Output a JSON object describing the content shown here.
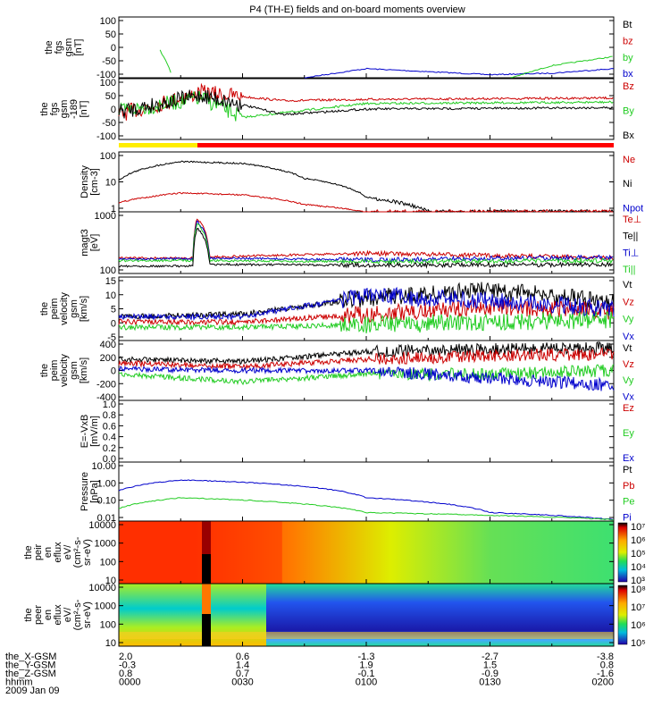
{
  "title": "P4 (TH-E) fields and on-board moments overview",
  "date": "2009 Jan 09",
  "colors": {
    "black": "#000000",
    "red": "#cc0000",
    "green": "#22cc22",
    "blue": "#0000cc",
    "yellow": "#ffee00",
    "barred": "#ff0000"
  },
  "panels": [
    {
      "id": "fgs",
      "ylabel": [
        "the",
        "fgs",
        "gsm",
        "[nT]"
      ],
      "ticks": [
        "100",
        "50",
        "0",
        "-50",
        "-100"
      ],
      "legend": [
        {
          "t": "Bt",
          "c": "black"
        },
        {
          "t": "bz",
          "c": "red"
        },
        {
          "t": "by",
          "c": "green"
        },
        {
          "t": "bx",
          "c": "blue"
        }
      ]
    },
    {
      "id": "fgs2",
      "ylabel": [
        "the",
        "fgs",
        "gsm",
        "-189",
        "[nT]"
      ],
      "ticks": [
        "100",
        "50",
        "0",
        "-50",
        "-100"
      ],
      "legend": [
        {
          "t": "Bz",
          "c": "red"
        },
        {
          "t": "By",
          "c": "green"
        },
        {
          "t": "Bx",
          "c": "black"
        }
      ]
    },
    {
      "id": "density",
      "ylabel": [
        "Density",
        "[cm-3]"
      ],
      "ticks": [
        "100",
        "10",
        "1"
      ],
      "legend": [
        {
          "t": "Ne",
          "c": "red"
        },
        {
          "t": "Ni",
          "c": "black"
        },
        {
          "t": "Npot",
          "c": "blue"
        }
      ]
    },
    {
      "id": "temp",
      "ylabel": [
        "magt3",
        "[eV]"
      ],
      "ticks": [
        "1000",
        "100"
      ],
      "legend": [
        {
          "t": "Te⊥",
          "c": "red"
        },
        {
          "t": "Te||",
          "c": "black"
        },
        {
          "t": "Ti⊥",
          "c": "blue"
        },
        {
          "t": "Ti||",
          "c": "green"
        }
      ]
    },
    {
      "id": "vel1",
      "ylabel": [
        "the",
        "peim",
        "velocity",
        "gsm",
        "[km/s]"
      ],
      "ticks": [
        "15",
        "10",
        "5",
        "0",
        "-5"
      ],
      "legend": [
        {
          "t": "Vt",
          "c": "black"
        },
        {
          "t": "Vz",
          "c": "red"
        },
        {
          "t": "Vy",
          "c": "green"
        },
        {
          "t": "Vx",
          "c": "blue"
        }
      ]
    },
    {
      "id": "vel2",
      "ylabel": [
        "the",
        "peim",
        "velocity",
        "gsm",
        "[km/s]"
      ],
      "ticks": [
        "400",
        "200",
        "0",
        "-200",
        "-400"
      ],
      "legend": [
        {
          "t": "Vt",
          "c": "black"
        },
        {
          "t": "Vz",
          "c": "red"
        },
        {
          "t": "Vy",
          "c": "green"
        },
        {
          "t": "Vx",
          "c": "blue"
        }
      ]
    },
    {
      "id": "efield",
      "ylabel": [
        "E=-VxB",
        "[mV/m]"
      ],
      "ticks": [
        "1.0",
        "0.8",
        "0.6",
        "0.4",
        "0.2",
        "0.0"
      ],
      "legend": [
        {
          "t": "Ez",
          "c": "red"
        },
        {
          "t": "Ey",
          "c": "green"
        },
        {
          "t": "Ex",
          "c": "blue"
        }
      ]
    },
    {
      "id": "pressure",
      "ylabel": [
        "Pressure",
        "[nPa]"
      ],
      "ticks": [
        "10.00",
        "1.00",
        "0.10",
        "0.01"
      ],
      "legend": [
        {
          "t": "Pt",
          "c": "black"
        },
        {
          "t": "Pb",
          "c": "red"
        },
        {
          "t": "Pe",
          "c": "green"
        },
        {
          "t": "Pi",
          "c": "blue"
        }
      ]
    },
    {
      "id": "ion_spec",
      "ylabel": [
        "the",
        "peir",
        "en",
        "eflux",
        "eV/",
        "(cm²-s-",
        "sr-eV)"
      ],
      "ticks": [
        "10000",
        "1000",
        "100",
        "10"
      ],
      "colorbar": [
        "10⁷",
        "10⁶",
        "10⁵",
        "10⁴",
        "10³"
      ]
    },
    {
      "id": "ele_spec",
      "ylabel": [
        "the",
        "peer",
        "en",
        "eflux",
        "eV/",
        "(cm²-s-",
        "sr-eV)"
      ],
      "ticks": [
        "10000",
        "1000",
        "100",
        "10"
      ],
      "colorbar": [
        "10⁸",
        "10⁷",
        "10⁶",
        "10⁵"
      ]
    }
  ],
  "footer": {
    "rows": [
      {
        "label": "the_X-GSM",
        "values": [
          "2.0",
          "0.6",
          "-1.3",
          "-2.7",
          "-3.8"
        ]
      },
      {
        "label": "the_Y-GSM",
        "values": [
          "-0.3",
          "1.4",
          "1.9",
          "1.5",
          "0.8"
        ]
      },
      {
        "label": "the_Z-GSM",
        "values": [
          "0.8",
          "0.7",
          "-0.1",
          "-0.9",
          "-1.6"
        ]
      },
      {
        "label": "hhmm",
        "values": [
          "0000",
          "0030",
          "0100",
          "0130",
          "0200"
        ]
      }
    ]
  },
  "chart_data": {
    "type": "line",
    "title": "P4 (TH-E) fields and on-board moments overview",
    "x_axis": {
      "label": "hhmm",
      "ticks": [
        "0000",
        "0030",
        "0100",
        "0130",
        "0200"
      ],
      "range": [
        "0000",
        "0200"
      ]
    },
    "panels": [
      {
        "name": "the fgs gsm [nT]",
        "ylim": [
          -100,
          100
        ],
        "series": [
          {
            "name": "by",
            "x": [
              "0010",
              "0012",
              "0013"
            ],
            "y": [
              -10,
              -60,
              -100
            ]
          },
          {
            "name": "bx",
            "x": [
              "0045",
              "0055",
              "0100",
              "0115",
              "0130",
              "0145",
              "0200"
            ],
            "y": [
              -100,
              -80,
              -70,
              -80,
              -90,
              -85,
              -70
            ]
          },
          {
            "name": "by",
            "x": [
              "0135",
              "0145",
              "0200"
            ],
            "y": [
              -100,
              -60,
              -30
            ]
          }
        ]
      },
      {
        "name": "the fgs gsm -189 [nT]",
        "ylim": [
          -120,
          100
        ],
        "series": [
          {
            "name": "Bz",
            "x": [
              "0000",
              "0020",
              "0040",
              "0100",
              "0200"
            ],
            "y": [
              -30,
              50,
              20,
              25,
              30
            ]
          },
          {
            "name": "By",
            "x": [
              "0000",
              "0020",
              "0030",
              "0100",
              "0200"
            ],
            "y": [
              -20,
              30,
              -40,
              10,
              15
            ]
          },
          {
            "name": "Bx",
            "x": [
              "0000",
              "0020",
              "0040",
              "0100",
              "0200"
            ],
            "y": [
              -20,
              40,
              -30,
              -10,
              -5
            ]
          }
        ]
      },
      {
        "name": "Density [cm-3]",
        "scale": "log",
        "ylim": [
          0.5,
          150
        ],
        "series": [
          {
            "name": "Ni",
            "x": [
              "0000",
              "0015",
              "0030",
              "0045",
              "0100",
              "0115",
              "0200"
            ],
            "y": [
              10,
              60,
              50,
              12,
              2,
              0.5,
              0.45
            ]
          },
          {
            "name": "Ne",
            "x": [
              "0000",
              "0015",
              "0030",
              "0045",
              "0100",
              "0200"
            ],
            "y": [
              1.2,
              3,
              2.5,
              1,
              0.5,
              0.3
            ]
          }
        ]
      },
      {
        "name": "magt3 [eV]",
        "scale": "log",
        "ylim": [
          100,
          8000
        ],
        "series": [
          {
            "name": "Te⊥",
            "x": [
              "0000",
              "0018",
              "0019",
              "0022",
              "0100",
              "0200"
            ],
            "y": [
              300,
              300,
              5000,
              320,
              420,
              300
            ]
          },
          {
            "name": "Ti⊥",
            "x": [
              "0000",
              "0018",
              "0019",
              "0022",
              "0100",
              "0200"
            ],
            "y": [
              280,
              280,
              4000,
              300,
              260,
              320
            ]
          },
          {
            "name": "Ti||",
            "x": [
              "0000",
              "0018",
              "0019",
              "0022",
              "0100",
              "0200"
            ],
            "y": [
              250,
              250,
              3500,
              250,
              230,
              250
            ]
          },
          {
            "name": "Te||",
            "x": [
              "0000",
              "0018",
              "0019",
              "0022",
              "0100",
              "0200"
            ],
            "y": [
              170,
              170,
              2500,
              190,
              180,
              190
            ]
          }
        ]
      },
      {
        "name": "the peim velocity gsm [km/s]",
        "ylim": [
          -7,
          17
        ],
        "series": [
          {
            "name": "Vt",
            "x": [
              "0000",
              "0030",
              "0100",
              "0130",
              "0200"
            ],
            "y": [
              2,
              3,
              9,
              12,
              8
            ]
          },
          {
            "name": "Vz",
            "x": [
              "0000",
              "0030",
              "0100",
              "0130",
              "0200"
            ],
            "y": [
              0,
              0,
              3,
              6,
              4
            ]
          },
          {
            "name": "Vy",
            "x": [
              "0000",
              "0030",
              "0100",
              "0130",
              "0200"
            ],
            "y": [
              -2,
              -2,
              -1,
              0,
              1
            ]
          },
          {
            "name": "Vx",
            "x": [
              "0000",
              "0030",
              "0100",
              "0130",
              "0200"
            ],
            "y": [
              2,
              2,
              10,
              8,
              5
            ]
          }
        ]
      },
      {
        "name": "the peim velocity gsm [km/s]",
        "ylim": [
          -400,
          400
        ],
        "series": [
          {
            "name": "Vt",
            "x": [
              "0000",
              "0030",
              "0100",
              "0130",
              "0200"
            ],
            "y": [
              150,
              120,
              250,
              280,
              300
            ]
          },
          {
            "name": "Vz",
            "x": [
              "0000",
              "0030",
              "0100",
              "0130",
              "0200"
            ],
            "y": [
              100,
              50,
              150,
              200,
              220
            ]
          },
          {
            "name": "Vy",
            "x": [
              "0000",
              "0030",
              "0100",
              "0130",
              "0200"
            ],
            "y": [
              -50,
              -150,
              -50,
              -50,
              0
            ]
          },
          {
            "name": "Vx",
            "x": [
              "0000",
              "0030",
              "0100",
              "0130",
              "0200"
            ],
            "y": [
              20,
              0,
              0,
              -100,
              -200
            ]
          }
        ]
      },
      {
        "name": "E=-VxB [mV/m]",
        "ylim": [
          0,
          1
        ],
        "series": []
      },
      {
        "name": "Pressure [nPa]",
        "scale": "log",
        "ylim": [
          0.01,
          20
        ],
        "series": [
          {
            "name": "Pi",
            "x": [
              "0000",
              "0015",
              "0030",
              "0100",
              "0130",
              "0200"
            ],
            "y": [
              0.5,
              2,
              1.5,
              0.2,
              0.03,
              0.012
            ]
          },
          {
            "name": "Pe",
            "x": [
              "0000",
              "0015",
              "0030",
              "0100",
              "0200"
            ],
            "y": [
              0.05,
              0.2,
              0.15,
              0.03,
              0.012
            ]
          }
        ]
      },
      {
        "name": "the peir en eflux eV/(cm2-s-sr-eV)",
        "type": "heatmap",
        "ylim": [
          5,
          20000
        ],
        "colorbar": [
          "10³",
          "10⁴",
          "10⁵",
          "10⁶",
          "10⁷"
        ]
      },
      {
        "name": "the peer en eflux eV/(cm2-s-sr-eV)",
        "type": "heatmap",
        "ylim": [
          5,
          20000
        ],
        "colorbar": [
          "10⁵",
          "10⁶",
          "10⁷",
          "10⁸"
        ]
      }
    ],
    "grid": false
  }
}
